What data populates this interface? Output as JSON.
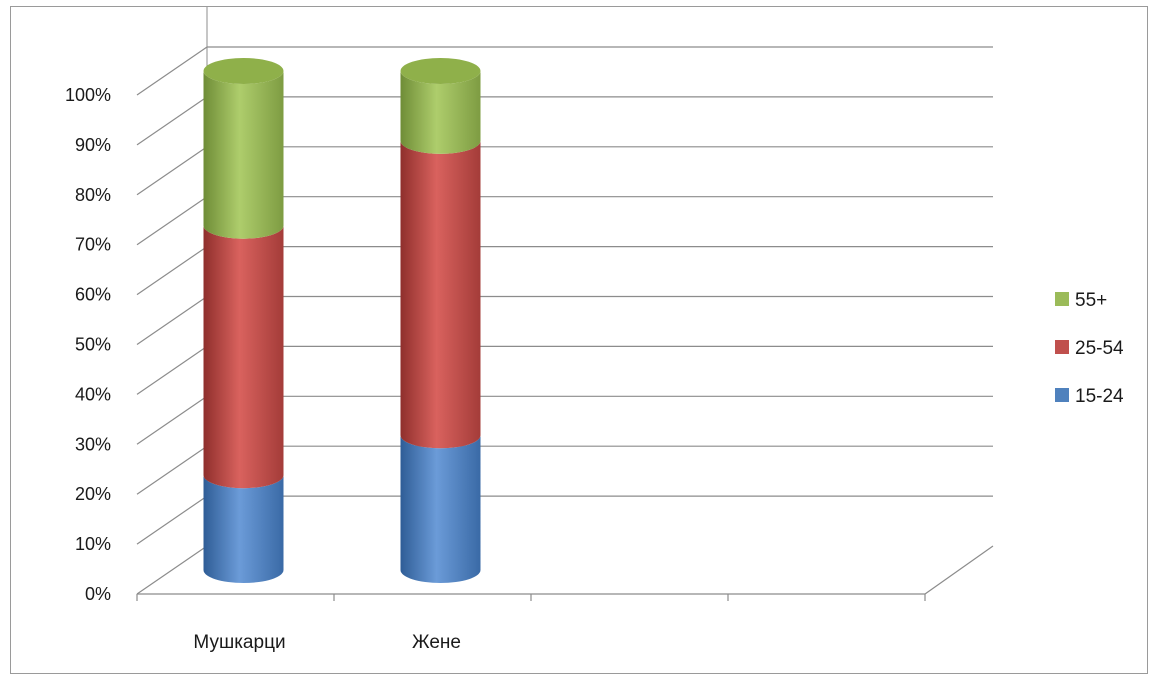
{
  "chart_data": {
    "type": "bar",
    "subtype": "stacked-100-percent-cylinder-3d",
    "title": "",
    "xlabel": "",
    "ylabel": "",
    "ylim": [
      0,
      100
    ],
    "y_ticks": [
      "0%",
      "10%",
      "20%",
      "30%",
      "40%",
      "50%",
      "60%",
      "70%",
      "80%",
      "90%",
      "100%"
    ],
    "categories": [
      "Мушкарци",
      "Жене"
    ],
    "category_slots": 4,
    "series": [
      {
        "name": "15-24",
        "values": [
          19,
          27
        ],
        "color": "#4f81bd"
      },
      {
        "name": "25-54",
        "values": [
          50,
          59
        ],
        "color": "#c0504d"
      },
      {
        "name": "55+",
        "values": [
          31,
          14
        ],
        "color": "#9bbb59"
      }
    ],
    "grid": true,
    "legend": {
      "position": "right",
      "order": [
        "55+",
        "25-54",
        "15-24"
      ]
    }
  }
}
